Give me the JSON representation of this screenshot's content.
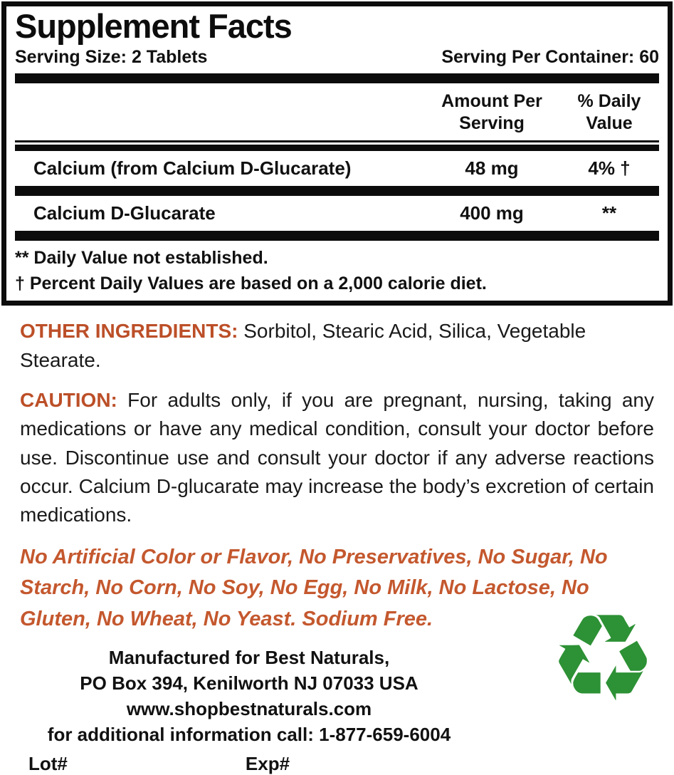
{
  "panel": {
    "title": "Supplement Facts",
    "serving_size": "Serving Size: 2 Tablets",
    "servings_per_container": "Serving Per Container: 60",
    "col_amount_header": "Amount Per Serving",
    "col_dv_header": "% Daily Value",
    "rows": [
      {
        "name": "Calcium (from Calcium D-Glucarate)",
        "amount": "48 mg",
        "dv": "4% †"
      },
      {
        "name": "Calcium D-Glucarate",
        "amount": "400 mg",
        "dv": "**"
      }
    ],
    "footnotes": [
      "** Daily Value not established.",
      "† Percent Daily Values are based on a 2,000 calorie diet."
    ]
  },
  "other_ingredients": {
    "label": "OTHER INGREDIENTS:",
    "text": "Sorbitol, Stearic Acid, Silica, Vegetable Stearate."
  },
  "caution": {
    "label": "CAUTION:",
    "text": "For adults only, if you are pregnant, nursing, taking any medications or have any medical condition, consult your doctor before use. Discontinue use and consult your doctor if any adverse reactions occur. Calcium D-glucarate may increase the body’s excretion of certain medications."
  },
  "claims": "No Artificial Color or Flavor, No Preservatives, No Sugar, No Starch, No Corn, No Soy, No Egg, No Milk, No Lactose, No Gluten, No Wheat, No Yeast. Sodium Free.",
  "manufacturer": {
    "line1": "Manufactured for Best Naturals,",
    "line2": "PO Box 394, Kenilworth NJ 07033 USA",
    "line3": "www.shopbestnaturals.com",
    "line4": "for additional information call: 1-877-659-6004",
    "lot_label": "Lot#",
    "exp_label": "Exp#"
  },
  "icons": {
    "recycle": "♻"
  },
  "colors": {
    "accent_orange": "#bc4f28",
    "claims_orange": "#c4582e",
    "recycle_green": "#2d9135",
    "rule_black": "#0c0c0c"
  }
}
